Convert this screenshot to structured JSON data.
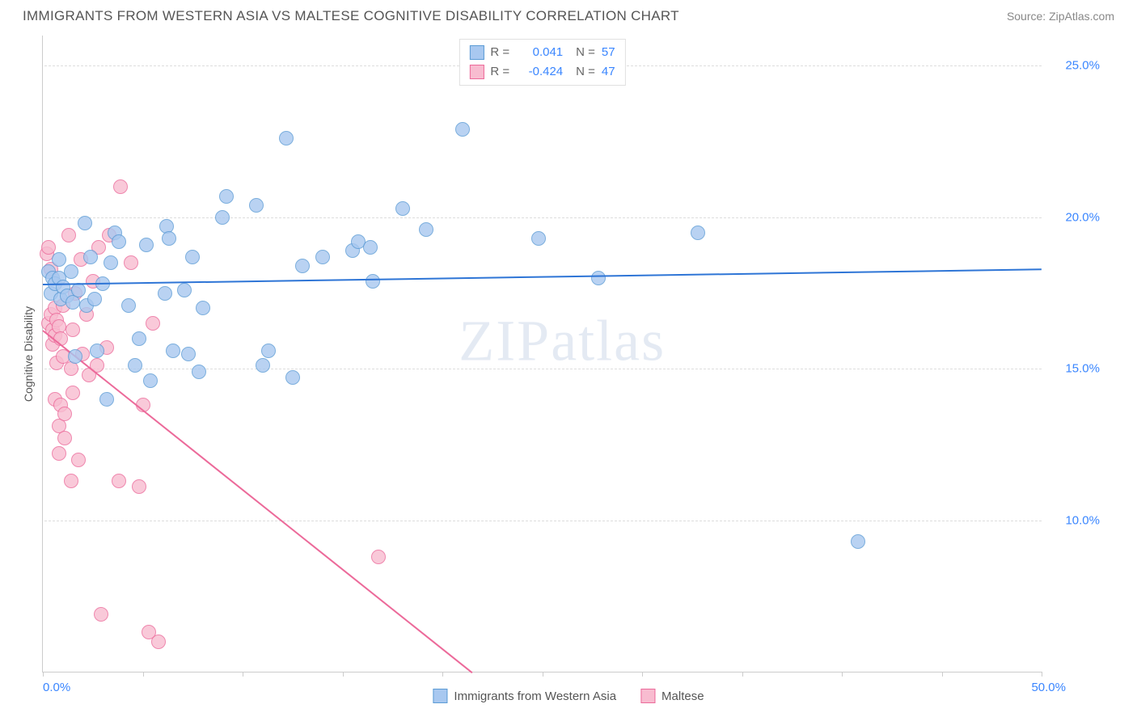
{
  "header": {
    "title": "IMMIGRANTS FROM WESTERN ASIA VS MALTESE COGNITIVE DISABILITY CORRELATION CHART",
    "source_label": "Source:",
    "source_name": "ZipAtlas.com"
  },
  "chart": {
    "type": "scatter",
    "ylabel": "Cognitive Disability",
    "xlim": [
      0,
      50
    ],
    "ylim": [
      5,
      26
    ],
    "x_tick_positions": [
      0,
      5,
      10,
      15,
      20,
      25,
      30,
      35,
      40,
      45,
      50
    ],
    "x_tick_labels": {
      "0": "0.0%",
      "50": "50.0%"
    },
    "y_ticks": [
      10,
      15,
      20,
      25
    ],
    "y_tick_labels": [
      "10.0%",
      "15.0%",
      "20.0%",
      "25.0%"
    ],
    "grid_color": "#dddddd",
    "axis_color": "#cccccc",
    "background_color": "#ffffff",
    "tick_label_color": "#3a86ff",
    "tick_label_fontsize": 15,
    "ylabel_color": "#555555",
    "ylabel_fontsize": 14,
    "marker_radius": 9,
    "marker_stroke_width": 1.5,
    "marker_fill_opacity": 0.35,
    "watermark": "ZIPatlas"
  },
  "series": {
    "blue": {
      "name": "Immigrants from Western Asia",
      "fill": "#a8c8f0",
      "stroke": "#5b9bd5",
      "line_color": "#2e75d6",
      "R": "0.041",
      "N": "57",
      "trend": {
        "x1": 0,
        "y1": 17.8,
        "x2": 50,
        "y2": 18.3
      },
      "points": [
        [
          0.3,
          18.2
        ],
        [
          0.4,
          17.5
        ],
        [
          0.5,
          18.0
        ],
        [
          0.6,
          17.8
        ],
        [
          0.8,
          18.0
        ],
        [
          0.8,
          18.6
        ],
        [
          0.9,
          17.3
        ],
        [
          1.0,
          17.7
        ],
        [
          1.2,
          17.4
        ],
        [
          1.4,
          18.2
        ],
        [
          1.5,
          17.2
        ],
        [
          1.6,
          15.4
        ],
        [
          1.8,
          17.6
        ],
        [
          2.1,
          19.8
        ],
        [
          2.2,
          17.1
        ],
        [
          2.4,
          18.7
        ],
        [
          2.6,
          17.3
        ],
        [
          2.7,
          15.6
        ],
        [
          3.0,
          17.8
        ],
        [
          3.2,
          14.0
        ],
        [
          3.4,
          18.5
        ],
        [
          3.6,
          19.5
        ],
        [
          3.8,
          19.2
        ],
        [
          4.3,
          17.1
        ],
        [
          4.6,
          15.1
        ],
        [
          4.8,
          16.0
        ],
        [
          5.2,
          19.1
        ],
        [
          5.4,
          14.6
        ],
        [
          6.1,
          17.5
        ],
        [
          6.2,
          19.7
        ],
        [
          6.3,
          19.3
        ],
        [
          6.5,
          15.6
        ],
        [
          7.1,
          17.6
        ],
        [
          7.3,
          15.5
        ],
        [
          7.5,
          18.7
        ],
        [
          7.8,
          14.9
        ],
        [
          8.0,
          17.0
        ],
        [
          9.0,
          20.0
        ],
        [
          9.2,
          20.7
        ],
        [
          10.7,
          20.4
        ],
        [
          11.0,
          15.1
        ],
        [
          11.3,
          15.6
        ],
        [
          12.2,
          22.6
        ],
        [
          12.5,
          14.7
        ],
        [
          13.0,
          18.4
        ],
        [
          14.0,
          18.7
        ],
        [
          15.5,
          18.9
        ],
        [
          15.8,
          19.2
        ],
        [
          16.4,
          19.0
        ],
        [
          16.5,
          17.9
        ],
        [
          18.0,
          20.3
        ],
        [
          19.2,
          19.6
        ],
        [
          21.0,
          22.9
        ],
        [
          24.8,
          19.3
        ],
        [
          27.8,
          18.0
        ],
        [
          32.8,
          19.5
        ],
        [
          40.8,
          9.3
        ]
      ]
    },
    "pink": {
      "name": "Maltese",
      "fill": "#f8bcd0",
      "stroke": "#ec6a9a",
      "line_color": "#ec6a9a",
      "R": "-0.424",
      "N": "47",
      "trend": {
        "x1": 0,
        "y1": 16.3,
        "x2": 21.5,
        "y2": 5.0
      },
      "points": [
        [
          0.2,
          18.8
        ],
        [
          0.3,
          19.0
        ],
        [
          0.3,
          16.5
        ],
        [
          0.4,
          18.3
        ],
        [
          0.4,
          16.8
        ],
        [
          0.5,
          16.3
        ],
        [
          0.5,
          15.8
        ],
        [
          0.6,
          16.1
        ],
        [
          0.6,
          17.0
        ],
        [
          0.6,
          14.0
        ],
        [
          0.7,
          16.6
        ],
        [
          0.7,
          15.2
        ],
        [
          0.8,
          16.4
        ],
        [
          0.8,
          13.1
        ],
        [
          0.8,
          12.2
        ],
        [
          0.9,
          16.0
        ],
        [
          0.9,
          13.8
        ],
        [
          1.0,
          17.1
        ],
        [
          1.0,
          15.4
        ],
        [
          1.1,
          13.5
        ],
        [
          1.1,
          12.7
        ],
        [
          1.3,
          19.4
        ],
        [
          1.4,
          15.0
        ],
        [
          1.4,
          11.3
        ],
        [
          1.5,
          16.3
        ],
        [
          1.5,
          14.2
        ],
        [
          1.6,
          17.5
        ],
        [
          1.8,
          12.0
        ],
        [
          1.9,
          18.6
        ],
        [
          2.0,
          15.5
        ],
        [
          2.2,
          16.8
        ],
        [
          2.3,
          14.8
        ],
        [
          2.5,
          17.9
        ],
        [
          2.7,
          15.1
        ],
        [
          2.8,
          19.0
        ],
        [
          2.9,
          6.9
        ],
        [
          3.2,
          15.7
        ],
        [
          3.3,
          19.4
        ],
        [
          3.8,
          11.3
        ],
        [
          3.9,
          21.0
        ],
        [
          4.4,
          18.5
        ],
        [
          4.8,
          11.1
        ],
        [
          5.0,
          13.8
        ],
        [
          5.3,
          6.3
        ],
        [
          5.5,
          16.5
        ],
        [
          5.8,
          6.0
        ],
        [
          16.8,
          8.8
        ]
      ]
    }
  },
  "legend_top": {
    "r_label": "R =",
    "n_label": "N ="
  },
  "legend_bottom": {
    "items": [
      "blue",
      "pink"
    ]
  }
}
